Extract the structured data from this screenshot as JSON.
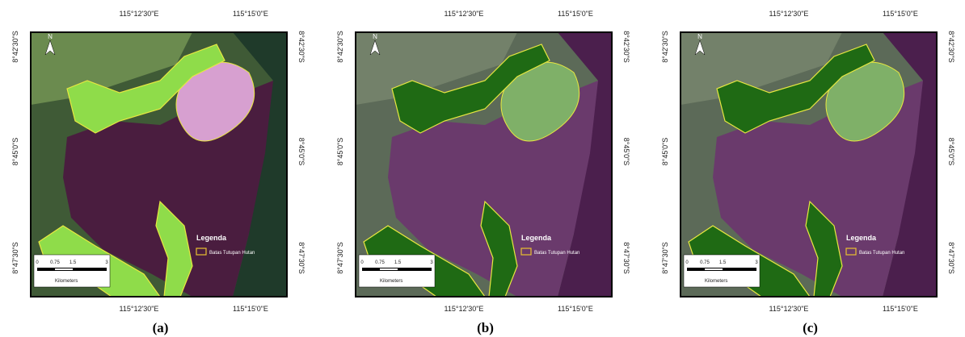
{
  "coords": {
    "x_labels": [
      "115°12'30\"E",
      "115°15'0\"E"
    ],
    "y_labels": [
      "8°42'30\"S",
      "8°45'0\"S",
      "8°47'30\"S"
    ]
  },
  "legend": {
    "title": "Legenda",
    "item": "Batas Tutupan Hutan"
  },
  "scale_bar": {
    "ticks": [
      "0",
      "0.75",
      "1.5",
      "3"
    ],
    "unit": "Kilometers"
  },
  "north": "N",
  "panels": [
    {
      "caption": "(a)"
    },
    {
      "caption": "(b)"
    },
    {
      "caption": "(c)"
    }
  ]
}
